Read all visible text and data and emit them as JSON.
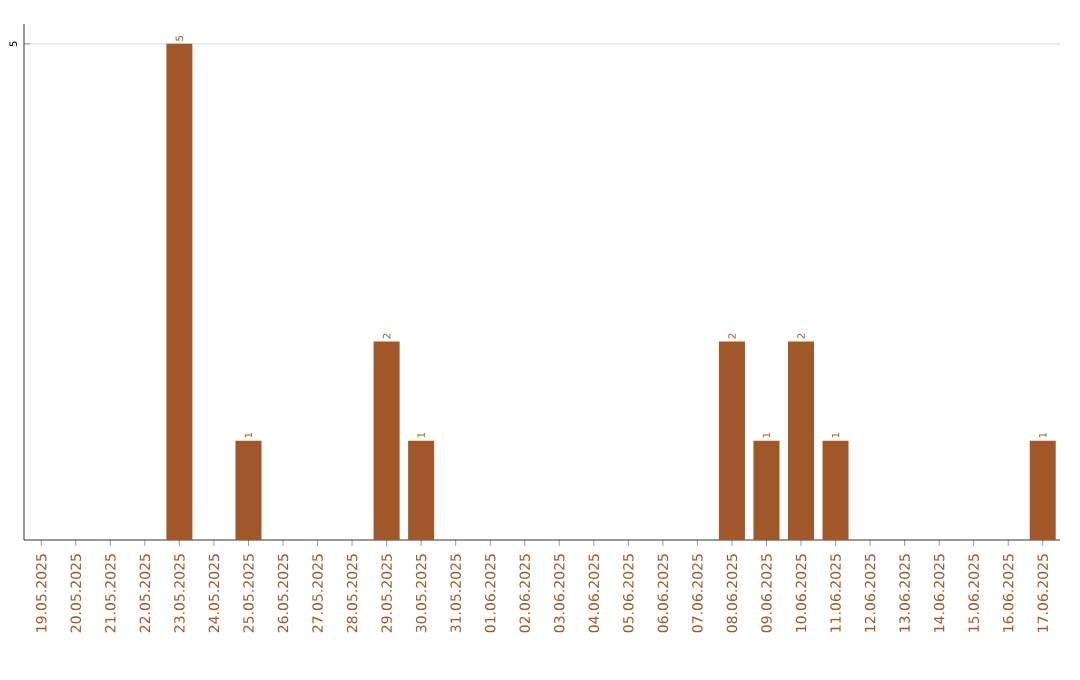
{
  "chart_data": {
    "type": "bar",
    "categories": [
      "19.05.2025",
      "20.05.2025",
      "21.05.2025",
      "22.05.2025",
      "23.05.2025",
      "24.05.2025",
      "25.05.2025",
      "26.05.2025",
      "27.05.2025",
      "28.05.2025",
      "29.05.2025",
      "30.05.2025",
      "31.05.2025",
      "01.06.2025",
      "02.06.2025",
      "03.06.2025",
      "04.06.2025",
      "05.06.2025",
      "06.06.2025",
      "07.06.2025",
      "08.06.2025",
      "09.06.2025",
      "10.06.2025",
      "11.06.2025",
      "12.06.2025",
      "13.06.2025",
      "14.06.2025",
      "15.06.2025",
      "16.06.2025",
      "17.06.2025"
    ],
    "values": [
      0,
      0,
      0,
      0,
      5,
      0,
      1,
      0,
      0,
      0,
      2,
      1,
      0,
      0,
      0,
      0,
      0,
      0,
      0,
      0,
      2,
      1,
      2,
      1,
      0,
      0,
      0,
      0,
      0,
      1
    ],
    "value_labels": [
      null,
      null,
      null,
      null,
      "5",
      null,
      "1",
      null,
      null,
      null,
      "2",
      "1",
      null,
      null,
      null,
      null,
      null,
      null,
      null,
      null,
      "2",
      "1",
      "2",
      "1",
      null,
      null,
      null,
      null,
      null,
      "1"
    ],
    "color": "#a0582a",
    "ylim": [
      0,
      5.2
    ],
    "yticks": [
      5
    ],
    "grid": "y"
  }
}
